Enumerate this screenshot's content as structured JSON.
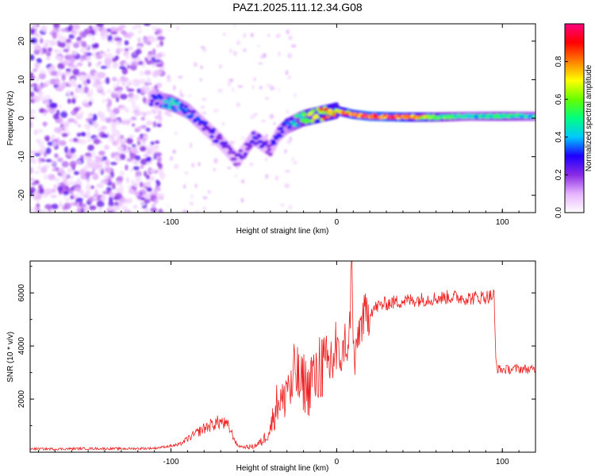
{
  "title": "PAZ1.2025.111.12.34.G08",
  "chart_data": [
    {
      "type": "heatmap",
      "xlabel": "Height of straight line (km)",
      "ylabel": "Frequency (Hz)",
      "xlim": [
        -185,
        120
      ],
      "ylim": [
        -24.5,
        24.5
      ],
      "xticks": [
        -100,
        0,
        100
      ],
      "yticks": [
        -20,
        -10,
        0,
        10,
        20
      ],
      "grid": false,
      "colorbar": {
        "label": "Normalized spectral amplitude",
        "range": [
          0,
          1
        ],
        "ticks": [
          "0.0",
          "0.2",
          "0.4",
          "0.6",
          "0.8"
        ],
        "colors": [
          "#ffffff",
          "#e6b3ff",
          "#8a2be2",
          "#1e00ff",
          "#00c8ff",
          "#00ff80",
          "#66ff00",
          "#ffff00",
          "#ff8000",
          "#ff0000",
          "#ff0080"
        ]
      },
      "ridge": {
        "x": [
          -110,
          -100,
          -90,
          -80,
          -70,
          -60,
          -50,
          -40,
          -35,
          -30,
          -20,
          -10,
          0,
          10,
          20,
          40,
          60,
          80,
          100,
          120
        ],
        "y": [
          5,
          4,
          2,
          -2,
          -6,
          -11,
          -5,
          -8,
          -4,
          -2,
          0,
          1,
          2,
          1,
          0.5,
          0.3,
          0.3,
          0.5,
          0.5,
          0.5
        ],
        "peak_amplitude": [
          0.3,
          0.45,
          0.35,
          0.3,
          0.25,
          0.2,
          0.3,
          0.25,
          0.3,
          0.35,
          0.6,
          0.85,
          0.75,
          0.95,
          1.0,
          0.95,
          0.65,
          0.45,
          0.55,
          0.45
        ]
      }
    },
    {
      "type": "line",
      "xlabel": "Height of straight line (km)",
      "ylabel": "SNR (10 * v/v)",
      "xlim": [
        -185,
        120
      ],
      "ylim": [
        0,
        7200
      ],
      "xticks": [
        -100,
        0,
        100
      ],
      "yticks": [
        2000,
        4000,
        6000
      ],
      "grid": false,
      "series": [
        {
          "color": "#ee2222",
          "x": [
            -185,
            -170,
            -150,
            -130,
            -110,
            -95,
            -90,
            -85,
            -80,
            -75,
            -70,
            -65,
            -60,
            -55,
            -50,
            -45,
            -40,
            -38,
            -35,
            -32,
            -30,
            -27,
            -25,
            -22,
            -20,
            -17,
            -15,
            -12,
            -10,
            -7,
            -5,
            -3,
            0,
            3,
            5,
            7,
            8,
            9,
            10,
            11,
            13,
            15,
            17,
            20,
            25,
            30,
            40,
            50,
            60,
            70,
            80,
            90,
            95,
            96,
            97,
            100,
            110,
            120
          ],
          "y": [
            130,
            120,
            140,
            130,
            150,
            280,
            500,
            700,
            900,
            1050,
            1150,
            950,
            250,
            180,
            220,
            400,
            900,
            1400,
            2100,
            1800,
            2700,
            2200,
            3200,
            2400,
            2700,
            2300,
            3000,
            2600,
            3500,
            3000,
            3200,
            3500,
            3900,
            3400,
            4300,
            3600,
            5000,
            7200,
            4200,
            3200,
            4500,
            4900,
            5100,
            5300,
            5500,
            5600,
            5700,
            5750,
            5800,
            5850,
            5800,
            5850,
            5900,
            3500,
            3150,
            3100,
            3150,
            3100
          ]
        }
      ]
    }
  ]
}
